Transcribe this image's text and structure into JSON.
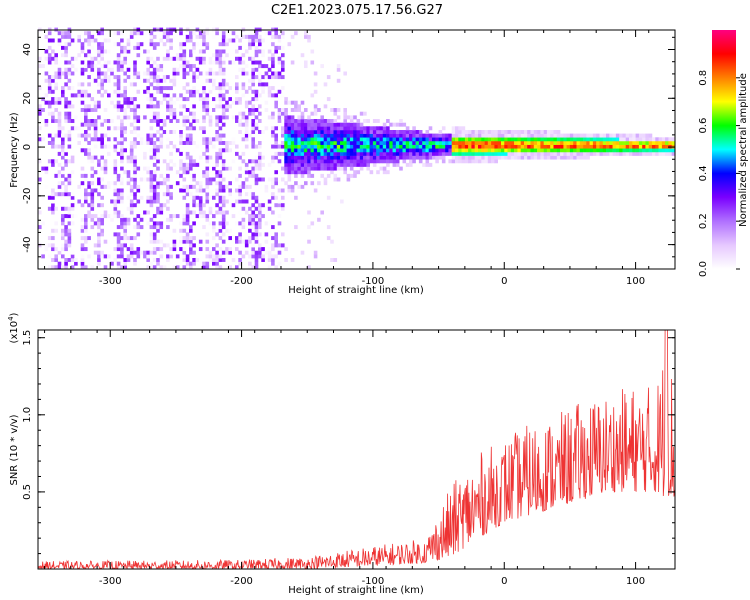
{
  "figure": {
    "title": "C2E1.2023.075.17.56.G27"
  },
  "chart_data": [
    {
      "type": "heatmap",
      "xlabel": "Height of straight line (km)",
      "ylabel": "Frequency (Hz)",
      "xlim": [
        -355,
        130
      ],
      "ylim": [
        -50,
        48
      ],
      "xticks": [
        -300,
        -200,
        -100,
        0,
        100
      ],
      "yticks": [
        -40,
        -20,
        0,
        20,
        40
      ],
      "xtick_labels": [
        "-300",
        "-200",
        "-100",
        "0",
        "100"
      ],
      "ytick_labels": [
        "-40",
        "-20",
        "0",
        "20",
        "40"
      ],
      "colorbar": {
        "label": "Normalized spectral amplitude",
        "range": [
          0,
          1
        ],
        "ticks": [
          0.0,
          0.2,
          0.4,
          0.6,
          0.8
        ],
        "tick_labels": [
          "0.0",
          "0.2",
          "0.4",
          "0.6",
          "0.8"
        ],
        "colors": [
          "#ffffff",
          "#e6c8ff",
          "#b070ff",
          "#7a00ff",
          "#0000ff",
          "#00ffff",
          "#00ff00",
          "#ffff00",
          "#ff8000",
          "#ff0000",
          "#ff0080"
        ]
      },
      "regions": [
        {
          "x_range": [
            -355,
            -168
          ],
          "freq_range": [
            -50,
            48
          ],
          "amplitude_range": [
            0.0,
            0.3
          ]
        },
        {
          "x_range": [
            -168,
            -40
          ],
          "freq_center": 0,
          "freq_halfwidth_start": 12,
          "freq_halfwidth_end": 4,
          "amplitude_range": [
            0.2,
            0.7
          ]
        },
        {
          "x_range": [
            -40,
            130
          ],
          "freq_center": 0,
          "freq_halfwidth_start": 4,
          "freq_halfwidth_end": 2,
          "amplitude_range": [
            0.5,
            1.0
          ]
        }
      ]
    },
    {
      "type": "line",
      "xlabel": "Height of straight line (km)",
      "ylabel": "SNR (10 * v/v)",
      "y_multiplier": "(x10",
      "y_multiplier_exp": "4",
      "y_multiplier_close": ")",
      "xlim": [
        -355,
        130
      ],
      "ylim": [
        0,
        1.55
      ],
      "xticks": [
        -300,
        -200,
        -100,
        0,
        100
      ],
      "yticks": [
        0.5,
        1.0,
        1.5
      ],
      "xtick_labels": [
        "-300",
        "-200",
        "-100",
        "0",
        "100"
      ],
      "ytick_labels": [
        "0.5",
        "1.0",
        "1.5"
      ],
      "color": "#ee3333",
      "envelope": {
        "x": [
          -355,
          -200,
          -150,
          -100,
          -60,
          -40,
          -20,
          0,
          20,
          40,
          60,
          80,
          100,
          115,
          125,
          130
        ],
        "low": [
          0.0,
          0.0,
          0.0,
          0.02,
          0.04,
          0.08,
          0.2,
          0.3,
          0.35,
          0.4,
          0.45,
          0.5,
          0.5,
          0.5,
          0.45,
          0.45
        ],
        "high": [
          0.05,
          0.06,
          0.08,
          0.15,
          0.2,
          0.55,
          0.75,
          0.85,
          0.95,
          1.0,
          1.1,
          1.15,
          1.2,
          1.2,
          1.55,
          1.1
        ]
      }
    }
  ]
}
